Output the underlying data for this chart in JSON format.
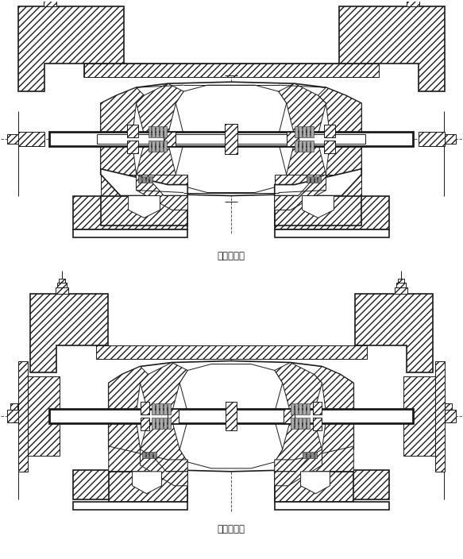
{
  "title1": "双边支重轮",
  "title2": "单边支重轮",
  "bg_color": "#ffffff",
  "line_color": "#1a1a1a",
  "fig_width": 5.83,
  "fig_height": 7.04,
  "dpi": 100,
  "font_size": 8.5
}
